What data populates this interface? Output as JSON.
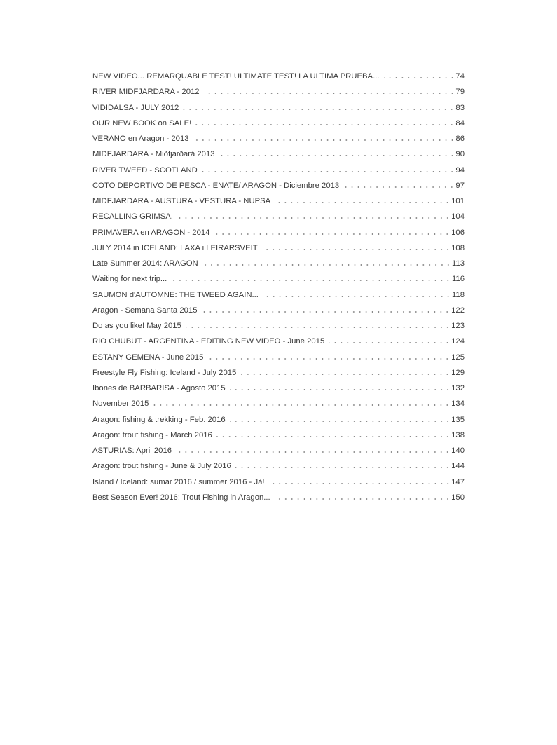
{
  "toc": [
    {
      "title": "NEW VIDEO... REMARQUABLE TEST! ULTIMATE TEST! LA ULTIMA PRUEBA...",
      "page": "74"
    },
    {
      "title": "RIVER MIDFJARDARA - 2012",
      "page": "79"
    },
    {
      "title": "VIDIDALSA - JULY 2012",
      "page": "83"
    },
    {
      "title": "OUR NEW BOOK on SALE!",
      "page": "84"
    },
    {
      "title": "VERANO en Aragon - 2013",
      "page": "86"
    },
    {
      "title": "MIDFJARDARA - Miðfjarðará 2013",
      "page": "90"
    },
    {
      "title": "RIVER TWEED - SCOTLAND",
      "page": "94"
    },
    {
      "title": "COTO DEPORTIVO DE PESCA - ENATE/ ARAGON - Diciembre 2013",
      "page": "97"
    },
    {
      "title": "MIDFJARDARA - AUSTURA - VESTURA - NUPSA",
      "page": "101"
    },
    {
      "title": "RECALLING GRIMSA.",
      "page": "104"
    },
    {
      "title": "PRIMAVERA en ARAGON - 2014",
      "page": "106"
    },
    {
      "title": "JULY 2014 in ICELAND: LAXA i LEIRARSVEIT",
      "page": "108"
    },
    {
      "title": "Late Summer 2014: ARAGON",
      "page": "113"
    },
    {
      "title": "Waiting for next trip...",
      "page": "116"
    },
    {
      "title": "SAUMON d'AUTOMNE: THE TWEED AGAIN...",
      "page": "118"
    },
    {
      "title": "Aragon - Semana Santa 2015",
      "page": "122"
    },
    {
      "title": "Do as you like! May 2015",
      "page": "123"
    },
    {
      "title": "RIO CHUBUT - ARGENTINA - EDITING NEW VIDEO - June 2015",
      "page": "124"
    },
    {
      "title": "ESTANY GEMENA - June 2015",
      "page": "125"
    },
    {
      "title": "Freestyle Fly Fishing: Iceland - July 2015",
      "page": "129"
    },
    {
      "title": "Ibones de BARBARISA - Agosto 2015",
      "page": "132"
    },
    {
      "title": "November 2015",
      "page": "134"
    },
    {
      "title": "Aragon: fishing & trekking - Feb. 2016",
      "page": "135"
    },
    {
      "title": "Aragon: trout fishing - March 2016",
      "page": "138"
    },
    {
      "title": "ASTURIAS: April 2016",
      "page": "140"
    },
    {
      "title": "Aragon: trout fishing - June & July 2016",
      "page": "144"
    },
    {
      "title": "Island / Iceland: sumar 2016 / summer 2016 - Jà!",
      "page": "147"
    },
    {
      "title": "Best Season Ever! 2016: Trout Fishing in Aragon...",
      "page": "150"
    }
  ]
}
